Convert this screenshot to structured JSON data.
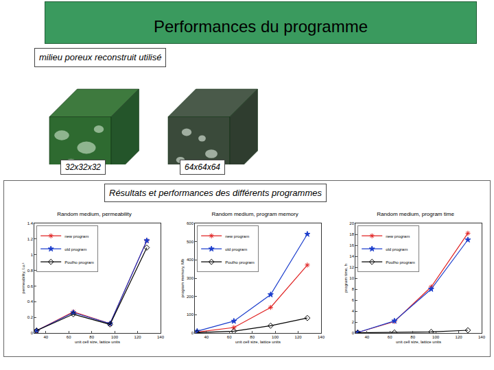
{
  "slide": {
    "title": "Performances du programme",
    "subtitle": "milieu poreux reconstruit utilisé",
    "images": [
      {
        "label": "32x32x32"
      },
      {
        "label": "64x64x64"
      }
    ],
    "results_label": "Résultats et performances des différents programmes"
  },
  "chart_data": [
    {
      "type": "line",
      "title": "Random medium, permeability",
      "x_label": "unit cell size, lattice units",
      "y_label": "permeability, l.u.²",
      "x": [
        32,
        64,
        96,
        128
      ],
      "series": [
        {
          "name": "new program",
          "color": "#e02020",
          "marker": "asterisk",
          "values": [
            0.03,
            0.27,
            0.12,
            1.18
          ]
        },
        {
          "name": "old program",
          "color": "#1a3ccc",
          "marker": "star",
          "values": [
            0.03,
            0.26,
            0.12,
            1.18
          ]
        },
        {
          "name": "Poulho program",
          "color": "#000000",
          "marker": "diamond",
          "values": [
            0.03,
            0.24,
            0.11,
            1.09
          ]
        }
      ],
      "xlim": [
        30,
        140
      ],
      "xticks": [
        40,
        60,
        80,
        100,
        120,
        140
      ],
      "ylim": [
        0,
        1.4
      ],
      "yticks": [
        0,
        0.2,
        0.4,
        0.6,
        0.8,
        1,
        1.2,
        1.4
      ],
      "grid": false,
      "legend": "upper left"
    },
    {
      "type": "line",
      "title": "Random medium, program memory",
      "x_label": "unit cell size, lattice units",
      "y_label": "program memory, Mb",
      "x": [
        32,
        64,
        96,
        128
      ],
      "series": [
        {
          "name": "new program",
          "color": "#e02020",
          "marker": "asterisk",
          "values": [
            5,
            30,
            140,
            372
          ]
        },
        {
          "name": "old program",
          "color": "#1a3ccc",
          "marker": "star",
          "values": [
            10,
            65,
            210,
            541
          ]
        },
        {
          "name": "Poulho program",
          "color": "#000000",
          "marker": "diamond",
          "values": [
            2,
            10,
            40,
            82
          ]
        }
      ],
      "xlim": [
        30,
        140
      ],
      "xticks": [
        40,
        60,
        80,
        100,
        120,
        140
      ],
      "ylim": [
        0,
        600
      ],
      "yticks": [
        0,
        100,
        200,
        300,
        400,
        500,
        600
      ],
      "grid": false,
      "legend": "upper left"
    },
    {
      "type": "line",
      "title": "Random medium, program time",
      "x_label": "unit cell size, lattice units",
      "y_label": "program time, h",
      "x": [
        32,
        64,
        96,
        128
      ],
      "series": [
        {
          "name": "new program",
          "color": "#e02020",
          "marker": "asterisk",
          "values": [
            0.1,
            2.1,
            8.4,
            18.2
          ]
        },
        {
          "name": "old program",
          "color": "#1a3ccc",
          "marker": "star",
          "values": [
            0.1,
            2.2,
            8.0,
            17.0
          ]
        },
        {
          "name": "Poulho program",
          "color": "#000000",
          "marker": "diamond",
          "values": [
            0.05,
            0.1,
            0.2,
            0.5
          ]
        }
      ],
      "xlim": [
        30,
        140
      ],
      "xticks": [
        40,
        60,
        80,
        100,
        120,
        140
      ],
      "ylim": [
        0,
        20
      ],
      "yticks": [
        0,
        2,
        4,
        6,
        8,
        10,
        12,
        14,
        16,
        18,
        20
      ],
      "grid": false,
      "legend": "upper left"
    }
  ]
}
